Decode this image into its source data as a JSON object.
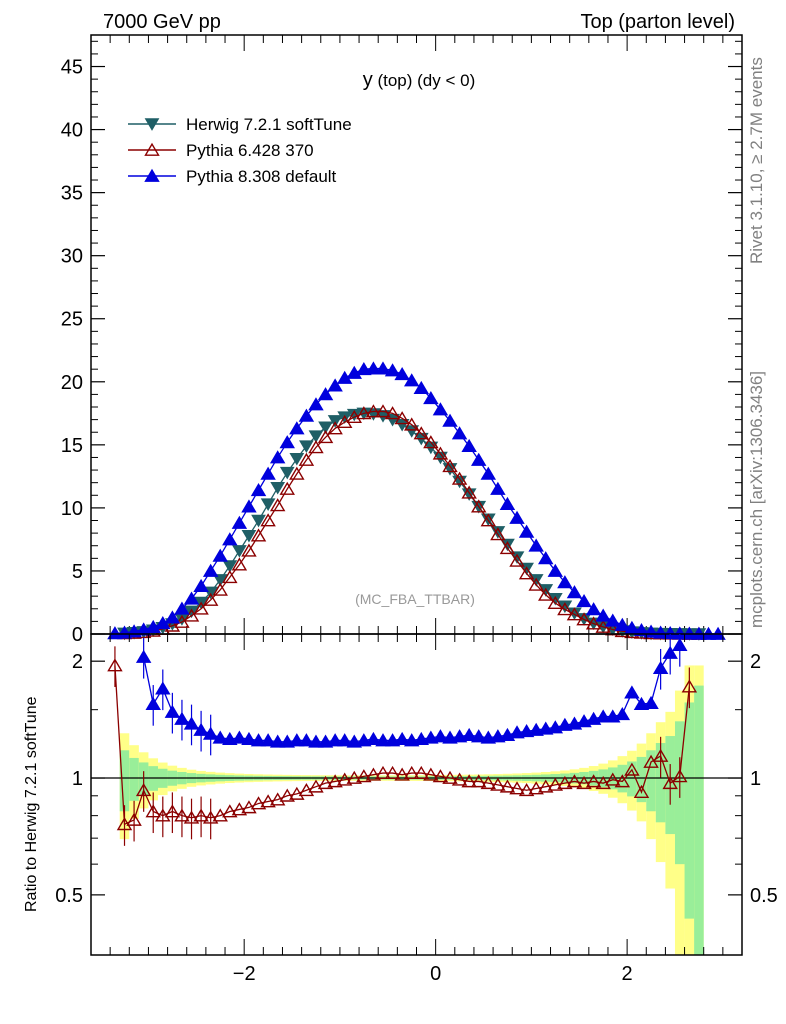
{
  "header": {
    "energy_label": "7000 GeV pp",
    "process_label": "Top (parton level)"
  },
  "side_labels": {
    "rivet": "Rivet 3.1.10, ≥ 2.7M events",
    "mcplots": "mcplots.cern.ch [arXiv:1306.3436]"
  },
  "plot_title": {
    "main": "y",
    "sub": " (top) (dy < 0)"
  },
  "analysis_tag": "(MC_FBA_TTBAR)",
  "legend": [
    {
      "label": "Herwig 7.2.1 softTune",
      "color": "#1f5f66",
      "marker": "triangle-down-filled"
    },
    {
      "label": "Pythia 6.428 370",
      "color": "#8b0000",
      "marker": "triangle-up-open"
    },
    {
      "label": "Pythia 8.308 default",
      "color": "#0000dd",
      "marker": "triangle-up-filled"
    }
  ],
  "ratio_ylabel": "Ratio to Herwig 7.2.1 softTune",
  "chart_data": [
    {
      "type": "line",
      "xlim": [
        -3.6,
        3.2
      ],
      "ylim": [
        0,
        47.5
      ],
      "yticks": [
        0,
        5,
        10,
        15,
        20,
        25,
        30,
        35,
        40,
        45
      ],
      "xticks": [
        -2,
        0,
        2
      ],
      "series": [
        {
          "name": "Herwig 7.2.1 softTune",
          "x": [
            -3.25,
            -3.15,
            -3.05,
            -2.95,
            -2.85,
            -2.75,
            -2.65,
            -2.55,
            -2.45,
            -2.35,
            -2.25,
            -2.15,
            -2.05,
            -1.95,
            -1.85,
            -1.75,
            -1.65,
            -1.55,
            -1.45,
            -1.35,
            -1.25,
            -1.15,
            -1.05,
            -0.95,
            -0.85,
            -0.75,
            -0.65,
            -0.55,
            -0.45,
            -0.35,
            -0.25,
            -0.15,
            -0.05,
            0.05,
            0.15,
            0.25,
            0.35,
            0.45,
            0.55,
            0.65,
            0.75,
            0.85,
            0.95,
            1.05,
            1.15,
            1.25,
            1.35,
            1.45,
            1.55,
            1.65,
            1.75,
            1.85,
            1.95,
            2.05,
            2.15,
            2.25,
            2.35,
            2.45,
            2.55,
            2.65,
            2.75
          ],
          "values": [
            0.05,
            0.1,
            0.17,
            0.3,
            0.5,
            0.8,
            1.2,
            1.8,
            2.5,
            3.3,
            4.3,
            5.4,
            6.6,
            7.8,
            9.0,
            10.3,
            11.6,
            12.8,
            13.9,
            14.9,
            15.7,
            16.4,
            16.9,
            17.2,
            17.4,
            17.5,
            17.45,
            17.3,
            17.0,
            16.6,
            16.1,
            15.5,
            14.8,
            14.0,
            13.1,
            12.1,
            11.1,
            10.1,
            9.1,
            8.1,
            7.1,
            6.1,
            5.2,
            4.3,
            3.5,
            2.8,
            2.2,
            1.65,
            1.2,
            0.85,
            0.58,
            0.38,
            0.24,
            0.15,
            0.09,
            0.05,
            0.03,
            0.02,
            0.01,
            0.005,
            0.003
          ]
        },
        {
          "name": "Pythia 6.428 370",
          "x": [
            -3.25,
            -3.15,
            -3.05,
            -2.95,
            -2.85,
            -2.75,
            -2.65,
            -2.55,
            -2.45,
            -2.35,
            -2.25,
            -2.15,
            -2.05,
            -1.95,
            -1.85,
            -1.75,
            -1.65,
            -1.55,
            -1.45,
            -1.35,
            -1.25,
            -1.15,
            -1.05,
            -0.95,
            -0.85,
            -0.75,
            -0.65,
            -0.55,
            -0.45,
            -0.35,
            -0.25,
            -0.15,
            -0.05,
            0.05,
            0.15,
            0.25,
            0.35,
            0.45,
            0.55,
            0.65,
            0.75,
            0.85,
            0.95,
            1.05,
            1.15,
            1.25,
            1.35,
            1.45,
            1.55,
            1.65,
            1.75,
            1.85,
            1.95,
            2.05,
            2.15,
            2.25,
            2.35,
            2.45,
            2.55,
            2.65,
            2.75
          ],
          "values": [
            0.05,
            0.08,
            0.14,
            0.25,
            0.4,
            0.65,
            0.95,
            1.45,
            2.0,
            2.7,
            3.5,
            4.5,
            5.5,
            6.6,
            7.8,
            9.0,
            10.2,
            11.5,
            12.7,
            13.8,
            14.8,
            15.6,
            16.3,
            16.8,
            17.2,
            17.5,
            17.65,
            17.65,
            17.5,
            17.1,
            16.6,
            15.9,
            15.2,
            14.3,
            13.3,
            12.3,
            11.2,
            10.1,
            9.0,
            7.9,
            6.8,
            5.8,
            4.8,
            3.9,
            3.1,
            2.45,
            1.95,
            1.55,
            1.15,
            0.82,
            0.56,
            0.36,
            0.22,
            0.14,
            0.09,
            0.05,
            0.03,
            0.02,
            0.01,
            0.005,
            0.003
          ]
        },
        {
          "name": "Pythia 8.308 default",
          "x": [
            -3.35,
            -3.25,
            -3.15,
            -3.05,
            -2.95,
            -2.85,
            -2.75,
            -2.65,
            -2.55,
            -2.45,
            -2.35,
            -2.25,
            -2.15,
            -2.05,
            -1.95,
            -1.85,
            -1.75,
            -1.65,
            -1.55,
            -1.45,
            -1.35,
            -1.25,
            -1.15,
            -1.05,
            -0.95,
            -0.85,
            -0.75,
            -0.65,
            -0.55,
            -0.45,
            -0.35,
            -0.25,
            -0.15,
            -0.05,
            0.05,
            0.15,
            0.25,
            0.35,
            0.45,
            0.55,
            0.65,
            0.75,
            0.85,
            0.95,
            1.05,
            1.15,
            1.25,
            1.35,
            1.45,
            1.55,
            1.65,
            1.75,
            1.85,
            1.95,
            2.05,
            2.15,
            2.25,
            2.35,
            2.45,
            2.55,
            2.65,
            2.75,
            2.85,
            2.95
          ],
          "values": [
            0.05,
            0.1,
            0.2,
            0.35,
            0.55,
            0.85,
            1.3,
            2.0,
            2.8,
            3.8,
            5.0,
            6.2,
            7.5,
            8.8,
            10.1,
            11.4,
            12.7,
            14.0,
            15.2,
            16.3,
            17.3,
            18.2,
            19.0,
            19.7,
            20.3,
            20.7,
            21.0,
            21.05,
            21.05,
            20.9,
            20.6,
            20.1,
            19.5,
            18.7,
            17.8,
            16.9,
            15.9,
            14.9,
            13.8,
            12.7,
            11.5,
            10.3,
            9.2,
            8.1,
            7.0,
            6.0,
            5.0,
            4.1,
            3.3,
            2.6,
            1.95,
            1.45,
            1.05,
            0.72,
            0.48,
            0.3,
            0.18,
            0.1,
            0.06,
            0.03,
            0.02,
            0.01,
            0.005,
            0.003
          ]
        }
      ]
    },
    {
      "type": "line",
      "ylabel": "Ratio to Herwig 7.2.1 softTune",
      "ylim": [
        0.35,
        2.35
      ],
      "yticks": [
        0.5,
        1,
        2
      ],
      "xlim": [
        -3.6,
        3.2
      ],
      "series": [
        {
          "name": "Pythia 8.308 default",
          "x": [
            -3.05,
            -2.95,
            -2.85,
            -2.75,
            -2.65,
            -2.55,
            -2.45,
            -2.35,
            -2.25,
            -2.15,
            -2.05,
            -1.95,
            -1.85,
            -1.75,
            -1.65,
            -1.55,
            -1.45,
            -1.35,
            -1.25,
            -1.15,
            -1.05,
            -0.95,
            -0.85,
            -0.75,
            -0.65,
            -0.55,
            -0.45,
            -0.35,
            -0.25,
            -0.15,
            -0.05,
            0.05,
            0.15,
            0.25,
            0.35,
            0.45,
            0.55,
            0.65,
            0.75,
            0.85,
            0.95,
            1.05,
            1.15,
            1.25,
            1.35,
            1.45,
            1.55,
            1.65,
            1.75,
            1.85,
            1.95,
            2.05,
            2.15,
            2.25,
            2.35,
            2.45,
            2.55
          ],
          "values": [
            2.05,
            1.55,
            1.7,
            1.48,
            1.42,
            1.38,
            1.33,
            1.3,
            1.27,
            1.26,
            1.27,
            1.26,
            1.25,
            1.25,
            1.24,
            1.24,
            1.25,
            1.25,
            1.24,
            1.24,
            1.25,
            1.25,
            1.24,
            1.25,
            1.26,
            1.25,
            1.25,
            1.26,
            1.25,
            1.26,
            1.27,
            1.28,
            1.27,
            1.28,
            1.29,
            1.28,
            1.27,
            1.28,
            1.29,
            1.31,
            1.32,
            1.33,
            1.34,
            1.35,
            1.37,
            1.38,
            1.4,
            1.42,
            1.44,
            1.44,
            1.46,
            1.66,
            1.55,
            1.56,
            1.92,
            2.1,
            2.2
          ]
        },
        {
          "name": "Pythia 6.428 370",
          "x": [
            -3.35,
            -3.25,
            -3.15,
            -3.05,
            -2.95,
            -2.85,
            -2.75,
            -2.65,
            -2.55,
            -2.45,
            -2.35,
            -2.25,
            -2.15,
            -2.05,
            -1.95,
            -1.85,
            -1.75,
            -1.65,
            -1.55,
            -1.45,
            -1.35,
            -1.25,
            -1.15,
            -1.05,
            -0.95,
            -0.85,
            -0.75,
            -0.65,
            -0.55,
            -0.45,
            -0.35,
            -0.25,
            -0.15,
            -0.05,
            0.05,
            0.15,
            0.25,
            0.35,
            0.45,
            0.55,
            0.65,
            0.75,
            0.85,
            0.95,
            1.05,
            1.15,
            1.25,
            1.35,
            1.45,
            1.55,
            1.65,
            1.75,
            1.85,
            1.95,
            2.05,
            2.15,
            2.25,
            2.35,
            2.45,
            2.55,
            2.65
          ],
          "values": [
            1.95,
            0.76,
            0.78,
            0.93,
            0.82,
            0.8,
            0.82,
            0.8,
            0.79,
            0.8,
            0.79,
            0.8,
            0.82,
            0.83,
            0.84,
            0.86,
            0.87,
            0.88,
            0.9,
            0.91,
            0.93,
            0.95,
            0.97,
            0.98,
            0.99,
            1.0,
            1.01,
            1.02,
            1.03,
            1.03,
            1.02,
            1.03,
            1.03,
            1.02,
            1.01,
            1.0,
            0.99,
            0.98,
            0.98,
            0.97,
            0.96,
            0.95,
            0.94,
            0.93,
            0.94,
            0.95,
            0.96,
            0.97,
            0.98,
            0.97,
            0.98,
            0.97,
            0.99,
            0.98,
            1.05,
            0.92,
            1.1,
            1.14,
            0.97,
            1.01,
            1.72
          ]
        }
      ]
    }
  ]
}
